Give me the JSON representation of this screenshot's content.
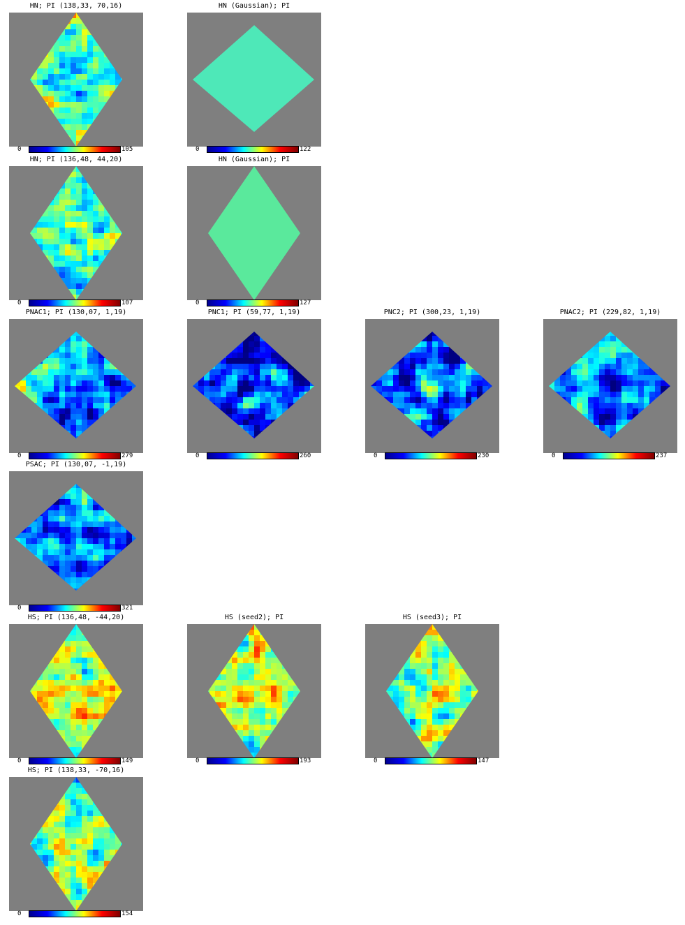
{
  "colormap": "jet",
  "background_color": "#7f7f7f",
  "panels": [
    {
      "title": "HN; PI (138,33, 70,16)",
      "shape": "tall",
      "fill": "texture",
      "cmin": "0",
      "cmax": "105",
      "seed": 11,
      "bias": 0.45,
      "row": 0,
      "col": 0
    },
    {
      "title": "HN (Gaussian); PI",
      "shape": "wide",
      "fill": "uniform",
      "color": "#4ee8b8",
      "cmin": "0",
      "cmax": "122",
      "row": 0,
      "col": 1
    },
    {
      "title": "HN; PI (136,48, 44,20)",
      "shape": "tall",
      "fill": "texture",
      "cmin": "0",
      "cmax": "107",
      "seed": 23,
      "bias": 0.42,
      "row": 1,
      "col": 0
    },
    {
      "title": "HN (Gaussian); PI",
      "shape": "tall",
      "fill": "uniform",
      "color": "#5ae99c",
      "cmin": "0",
      "cmax": "127",
      "row": 1,
      "col": 1
    },
    {
      "title": "PNAC1; PI (130,07, 1,19)",
      "shape": "wide",
      "fill": "texture",
      "cmin": "0",
      "cmax": "279",
      "seed": 37,
      "bias": 0.28,
      "row": 2,
      "col": 0
    },
    {
      "title": "PNC1; PI (59,77, 1,19)",
      "shape": "wide",
      "fill": "texture",
      "cmin": "0",
      "cmax": "260",
      "seed": 41,
      "bias": 0.16,
      "row": 2,
      "col": 1
    },
    {
      "title": "PNC2; PI (300,23, 1,19)",
      "shape": "wide",
      "fill": "texture",
      "cmin": "0",
      "cmax": "230",
      "seed": 53,
      "bias": 0.2,
      "row": 2,
      "col": 2
    },
    {
      "title": "PNAC2; PI (229,82, 1,19)",
      "shape": "wide",
      "fill": "texture",
      "cmin": "0",
      "cmax": "237",
      "seed": 67,
      "bias": 0.24,
      "row": 2,
      "col": 3
    },
    {
      "title": "PSAC; PI (130,07, -1,19)",
      "shape": "wide",
      "fill": "texture",
      "cmin": "0",
      "cmax": "321",
      "seed": 71,
      "bias": 0.27,
      "row": 3,
      "col": 0
    },
    {
      "title": "HS; PI (136,48, -44,20)",
      "shape": "tall",
      "fill": "texture",
      "cmin": "0",
      "cmax": "149",
      "seed": 83,
      "bias": 0.55,
      "row": 4,
      "col": 0
    },
    {
      "title": "HS (seed2); PI",
      "shape": "tall",
      "fill": "texture",
      "cmin": "0",
      "cmax": "193",
      "seed": 97,
      "bias": 0.55,
      "row": 4,
      "col": 1
    },
    {
      "title": "HS (seed3); PI",
      "shape": "tall",
      "fill": "texture",
      "cmin": "0",
      "cmax": "147",
      "seed": 101,
      "bias": 0.52,
      "row": 4,
      "col": 2
    },
    {
      "title": "HS; PI (138,33, -70,16)",
      "shape": "tall",
      "fill": "texture",
      "cmin": "0",
      "cmax": "154",
      "seed": 113,
      "bias": 0.48,
      "row": 5,
      "col": 0
    }
  ]
}
